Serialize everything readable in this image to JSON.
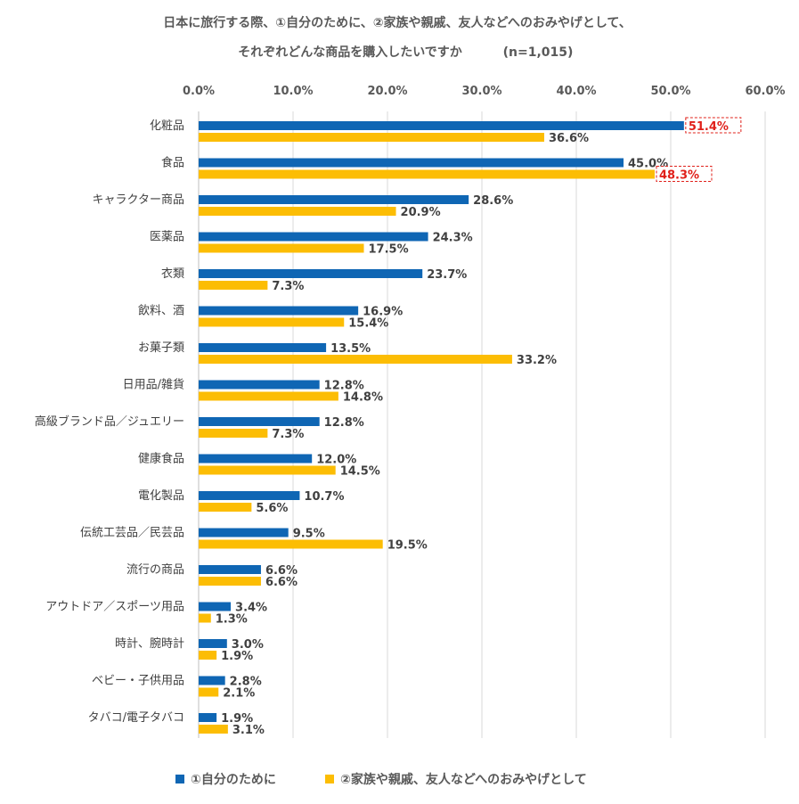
{
  "chart_data": {
    "type": "bar",
    "orientation": "horizontal",
    "title_line1": "日本に旅行する際、①自分のために、②家族や親戚、友人などへのおみやげとして、",
    "title_line2": "それぞれどんな商品を購入したいですか",
    "title_note": "(n=1,015)",
    "xlim": [
      0,
      60
    ],
    "ticks": [
      "0.0%",
      "10.0%",
      "20.0%",
      "30.0%",
      "40.0%",
      "50.0%",
      "60.0%"
    ],
    "tick_values": [
      0,
      10,
      20,
      30,
      40,
      50,
      60
    ],
    "grid": true,
    "legend_position": "bottom",
    "categories": [
      "化粧品",
      "食品",
      "キャラクター商品",
      "医薬品",
      "衣類",
      "飲料、酒",
      "お菓子類",
      "日用品/雑貨",
      "高級ブランド品／ジュエリー",
      "健康食品",
      "電化製品",
      "伝統工芸品／民芸品",
      "流行の商品",
      "アウトドア／スポーツ用品",
      "時計、腕時計",
      "ベビー・子供用品",
      "タバコ/電子タバコ"
    ],
    "series": [
      {
        "name": "①自分のために",
        "color": "#0f66b4",
        "values": [
          51.4,
          45.0,
          28.6,
          24.3,
          23.7,
          16.9,
          13.5,
          12.8,
          12.8,
          12.0,
          10.7,
          9.5,
          6.6,
          3.4,
          3.0,
          2.8,
          1.9
        ],
        "labels": [
          "51.4%",
          "45.0%",
          "28.6%",
          "24.3%",
          "23.7%",
          "16.9%",
          "13.5%",
          "12.8%",
          "12.8%",
          "12.0%",
          "10.7%",
          "9.5%",
          "6.6%",
          "3.4%",
          "3.0%",
          "2.8%",
          "1.9%"
        ],
        "highlight_index": 0
      },
      {
        "name": "②家族や親戚、友人などへのおみやげとして",
        "color": "#fcbd04",
        "values": [
          36.6,
          48.3,
          20.9,
          17.5,
          7.3,
          15.4,
          33.2,
          14.8,
          7.3,
          14.5,
          5.6,
          19.5,
          6.6,
          1.3,
          1.9,
          2.1,
          3.1
        ],
        "labels": [
          "36.6%",
          "48.3%",
          "20.9%",
          "17.5%",
          "7.3%",
          "15.4%",
          "33.2%",
          "14.8%",
          "7.3%",
          "14.5%",
          "5.6%",
          "19.5%",
          "6.6%",
          "1.3%",
          "1.9%",
          "2.1%",
          "3.1%"
        ],
        "highlight_index": 1
      }
    ],
    "highlight_color": "#e0201a"
  }
}
